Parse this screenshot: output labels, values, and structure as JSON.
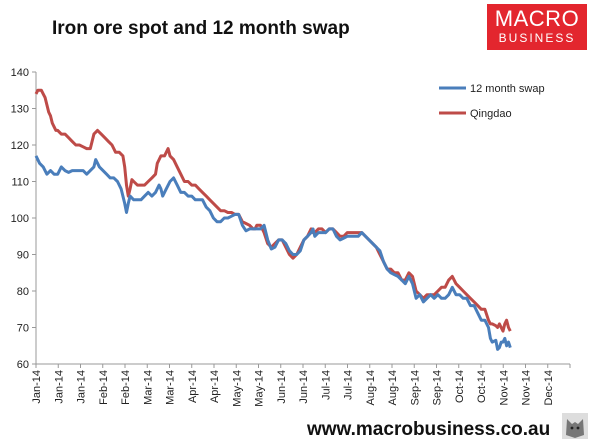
{
  "header": {
    "title": "Iron ore spot and 12 month swap",
    "logo_line1": "MACRO",
    "logo_line2": "BUSINESS"
  },
  "footer": {
    "url": "www.macrobusiness.co.au"
  },
  "colors": {
    "swap": "#4a7ebb",
    "qingdao": "#be4b48",
    "logo_bg": "#e3262e"
  },
  "chart_data": {
    "type": "line",
    "title": "Iron ore spot and 12 month swap",
    "ylim": [
      60,
      140
    ],
    "yticks": [
      60,
      70,
      80,
      90,
      100,
      110,
      120,
      130,
      140
    ],
    "grid": false,
    "legend_position": "top-right",
    "x_labels": [
      "Jan-14",
      "Jan-14",
      "Jan-14",
      "Feb-14",
      "Feb-14",
      "Mar-14",
      "Mar-14",
      "Apr-14",
      "Apr-14",
      "May-14",
      "May-14",
      "Jun-14",
      "Jun-14",
      "Jul-14",
      "Jul-14",
      "Aug-14",
      "Aug-14",
      "Sep-14",
      "Sep-14",
      "Oct-14",
      "Oct-14",
      "Nov-14",
      "Nov-14",
      "Dec-14"
    ],
    "series": [
      {
        "name": "12 month swap",
        "values": [
          [
            0,
            117
          ],
          [
            4,
            115
          ],
          [
            8,
            114
          ],
          [
            12,
            112
          ],
          [
            16,
            113
          ],
          [
            20,
            112
          ],
          [
            24,
            112
          ],
          [
            28,
            114
          ],
          [
            32,
            113
          ],
          [
            36,
            112.5
          ],
          [
            40,
            113
          ],
          [
            44,
            113
          ],
          [
            48,
            113
          ],
          [
            52,
            113
          ],
          [
            56,
            112
          ],
          [
            60,
            113
          ],
          [
            64,
            114
          ],
          [
            66,
            116
          ],
          [
            70,
            114
          ],
          [
            74,
            113
          ],
          [
            78,
            112
          ],
          [
            82,
            111
          ],
          [
            86,
            111
          ],
          [
            90,
            110
          ],
          [
            94,
            108
          ],
          [
            98,
            104
          ],
          [
            100,
            101.5
          ],
          [
            102,
            104
          ],
          [
            104,
            106
          ],
          [
            108,
            105
          ],
          [
            112,
            105
          ],
          [
            116,
            105
          ],
          [
            120,
            106
          ],
          [
            124,
            107
          ],
          [
            128,
            106
          ],
          [
            132,
            107
          ],
          [
            136,
            109
          ],
          [
            138,
            108
          ],
          [
            140,
            106
          ],
          [
            144,
            108
          ],
          [
            148,
            110
          ],
          [
            152,
            111
          ],
          [
            156,
            109
          ],
          [
            160,
            107
          ],
          [
            164,
            107
          ],
          [
            168,
            106
          ],
          [
            172,
            106
          ],
          [
            176,
            105
          ],
          [
            180,
            105
          ],
          [
            184,
            105
          ],
          [
            188,
            103
          ],
          [
            192,
            102
          ],
          [
            196,
            100
          ],
          [
            200,
            99
          ],
          [
            204,
            99
          ],
          [
            208,
            100
          ],
          [
            212,
            100
          ],
          [
            216,
            100.5
          ],
          [
            220,
            101
          ],
          [
            224,
            101
          ],
          [
            228,
            98
          ],
          [
            232,
            96.5
          ],
          [
            236,
            97
          ],
          [
            240,
            97
          ],
          [
            244,
            97
          ],
          [
            248,
            97
          ],
          [
            252,
            98
          ],
          [
            256,
            94
          ],
          [
            260,
            91.5
          ],
          [
            264,
            92
          ],
          [
            268,
            94
          ],
          [
            272,
            94
          ],
          [
            276,
            93
          ],
          [
            280,
            91
          ],
          [
            284,
            90
          ],
          [
            288,
            90
          ],
          [
            292,
            91
          ],
          [
            296,
            94
          ],
          [
            300,
            95
          ],
          [
            304,
            96
          ],
          [
            306,
            97
          ],
          [
            308,
            95
          ],
          [
            312,
            96
          ],
          [
            316,
            96
          ],
          [
            320,
            96
          ],
          [
            324,
            97
          ],
          [
            328,
            97
          ],
          [
            332,
            95
          ],
          [
            336,
            94
          ],
          [
            340,
            94.5
          ],
          [
            344,
            95
          ],
          [
            348,
            95
          ],
          [
            352,
            95
          ],
          [
            356,
            95
          ],
          [
            360,
            96
          ],
          [
            364,
            95
          ],
          [
            368,
            94
          ],
          [
            372,
            93
          ],
          [
            376,
            92
          ],
          [
            380,
            91
          ],
          [
            384,
            88
          ],
          [
            388,
            86
          ],
          [
            392,
            85
          ],
          [
            396,
            84.5
          ],
          [
            400,
            84
          ],
          [
            404,
            83
          ],
          [
            408,
            82
          ],
          [
            412,
            84
          ],
          [
            416,
            82
          ],
          [
            420,
            78
          ],
          [
            424,
            79
          ],
          [
            428,
            77
          ],
          [
            432,
            78
          ],
          [
            436,
            79
          ],
          [
            440,
            78
          ],
          [
            444,
            79
          ],
          [
            448,
            78
          ],
          [
            452,
            78
          ],
          [
            456,
            79
          ],
          [
            460,
            81
          ],
          [
            464,
            79
          ],
          [
            468,
            79
          ],
          [
            472,
            78
          ],
          [
            476,
            78
          ],
          [
            480,
            76
          ],
          [
            484,
            76
          ],
          [
            488,
            74
          ],
          [
            492,
            72
          ],
          [
            496,
            72
          ],
          [
            500,
            70
          ],
          [
            502,
            67
          ],
          [
            504,
            66
          ],
          [
            508,
            66.5
          ],
          [
            510,
            64
          ],
          [
            512,
            64.5
          ],
          [
            514,
            66
          ],
          [
            516,
            66
          ],
          [
            518,
            67
          ],
          [
            520,
            65
          ],
          [
            522,
            66
          ],
          [
            524,
            64.5
          ]
        ]
      },
      {
        "name": "Qingdao",
        "values": [
          [
            0,
            134
          ],
          [
            2,
            135
          ],
          [
            6,
            135
          ],
          [
            8,
            134
          ],
          [
            10,
            133
          ],
          [
            12,
            131
          ],
          [
            14,
            129
          ],
          [
            16,
            128
          ],
          [
            18,
            126
          ],
          [
            20,
            125
          ],
          [
            22,
            124
          ],
          [
            24,
            124
          ],
          [
            28,
            123
          ],
          [
            32,
            123
          ],
          [
            36,
            122
          ],
          [
            40,
            121
          ],
          [
            44,
            120
          ],
          [
            48,
            120
          ],
          [
            52,
            119.5
          ],
          [
            56,
            119
          ],
          [
            60,
            119
          ],
          [
            62,
            121
          ],
          [
            64,
            123
          ],
          [
            68,
            124
          ],
          [
            72,
            123
          ],
          [
            76,
            122
          ],
          [
            80,
            121
          ],
          [
            84,
            120
          ],
          [
            88,
            118
          ],
          [
            92,
            118
          ],
          [
            96,
            117
          ],
          [
            98,
            114
          ],
          [
            100,
            109
          ],
          [
            102,
            106
          ],
          [
            104,
            108
          ],
          [
            106,
            110.5
          ],
          [
            108,
            110
          ],
          [
            112,
            109
          ],
          [
            116,
            109
          ],
          [
            120,
            109
          ],
          [
            124,
            110
          ],
          [
            128,
            111
          ],
          [
            132,
            112
          ],
          [
            134,
            115
          ],
          [
            136,
            116
          ],
          [
            138,
            117
          ],
          [
            142,
            117
          ],
          [
            146,
            119
          ],
          [
            148,
            117
          ],
          [
            152,
            116
          ],
          [
            156,
            114
          ],
          [
            160,
            112
          ],
          [
            164,
            110
          ],
          [
            168,
            110
          ],
          [
            172,
            109
          ],
          [
            176,
            109
          ],
          [
            180,
            108
          ],
          [
            184,
            107
          ],
          [
            188,
            106
          ],
          [
            192,
            105
          ],
          [
            196,
            104
          ],
          [
            200,
            103
          ],
          [
            204,
            102
          ],
          [
            208,
            102
          ],
          [
            212,
            101.5
          ],
          [
            216,
            101.5
          ],
          [
            220,
            101
          ],
          [
            224,
            101
          ],
          [
            228,
            99
          ],
          [
            232,
            98.5
          ],
          [
            236,
            98
          ],
          [
            240,
            97
          ],
          [
            242,
            97
          ],
          [
            244,
            98
          ],
          [
            248,
            98
          ],
          [
            252,
            96
          ],
          [
            256,
            93
          ],
          [
            260,
            92
          ],
          [
            264,
            93
          ],
          [
            268,
            94
          ],
          [
            272,
            94
          ],
          [
            276,
            92
          ],
          [
            280,
            90
          ],
          [
            284,
            89
          ],
          [
            288,
            90
          ],
          [
            292,
            92
          ],
          [
            296,
            94
          ],
          [
            300,
            95
          ],
          [
            304,
            97
          ],
          [
            306,
            96
          ],
          [
            308,
            96
          ],
          [
            312,
            97
          ],
          [
            316,
            97
          ],
          [
            320,
            96
          ],
          [
            324,
            97
          ],
          [
            328,
            97
          ],
          [
            332,
            96
          ],
          [
            336,
            95
          ],
          [
            340,
            95
          ],
          [
            344,
            96
          ],
          [
            348,
            96
          ],
          [
            352,
            96
          ],
          [
            356,
            96
          ],
          [
            360,
            96
          ],
          [
            364,
            95
          ],
          [
            368,
            94
          ],
          [
            372,
            93
          ],
          [
            376,
            92
          ],
          [
            380,
            90
          ],
          [
            384,
            88
          ],
          [
            388,
            86
          ],
          [
            392,
            86
          ],
          [
            396,
            85
          ],
          [
            400,
            85
          ],
          [
            404,
            83
          ],
          [
            408,
            83
          ],
          [
            412,
            85
          ],
          [
            416,
            84
          ],
          [
            420,
            80
          ],
          [
            424,
            79
          ],
          [
            428,
            78
          ],
          [
            432,
            79
          ],
          [
            436,
            79
          ],
          [
            440,
            79
          ],
          [
            444,
            80
          ],
          [
            448,
            81
          ],
          [
            452,
            81
          ],
          [
            456,
            83
          ],
          [
            460,
            84
          ],
          [
            464,
            82
          ],
          [
            468,
            81
          ],
          [
            472,
            80
          ],
          [
            476,
            79
          ],
          [
            480,
            78
          ],
          [
            484,
            77
          ],
          [
            488,
            76
          ],
          [
            492,
            75
          ],
          [
            496,
            75
          ],
          [
            500,
            72
          ],
          [
            502,
            71
          ],
          [
            504,
            71
          ],
          [
            508,
            70.5
          ],
          [
            510,
            70
          ],
          [
            512,
            71
          ],
          [
            514,
            70
          ],
          [
            516,
            69
          ],
          [
            518,
            71
          ],
          [
            520,
            72
          ],
          [
            522,
            70
          ],
          [
            524,
            69
          ]
        ]
      }
    ]
  }
}
